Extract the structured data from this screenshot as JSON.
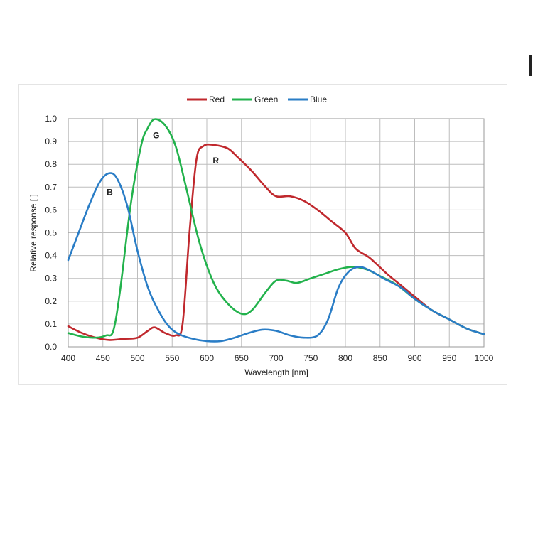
{
  "chart_data": {
    "type": "line",
    "title": "",
    "xlabel": "Wavelength [nm]",
    "ylabel": "Relative response [ ]",
    "xlim": [
      400,
      1000
    ],
    "ylim": [
      0,
      1.0
    ],
    "x_ticks": [
      "400",
      "450",
      "500",
      "550",
      "600",
      "650",
      "700",
      "750",
      "800",
      "850",
      "900",
      "950",
      "1000"
    ],
    "y_ticks": [
      "0.0",
      "0.1",
      "0.2",
      "0.3",
      "0.4",
      "0.5",
      "0.6",
      "0.7",
      "0.8",
      "0.9",
      "1.0"
    ],
    "grid": true,
    "legend_position": "top-center",
    "series": [
      {
        "name": "Red",
        "color": "#c0282d",
        "label": "R",
        "label_at": [
          613,
          0.82
        ],
        "points": [
          [
            400,
            0.09
          ],
          [
            420,
            0.06
          ],
          [
            440,
            0.04
          ],
          [
            460,
            0.03
          ],
          [
            480,
            0.035
          ],
          [
            500,
            0.04
          ],
          [
            515,
            0.07
          ],
          [
            525,
            0.085
          ],
          [
            540,
            0.06
          ],
          [
            555,
            0.05
          ],
          [
            565,
            0.1
          ],
          [
            575,
            0.5
          ],
          [
            585,
            0.82
          ],
          [
            595,
            0.88
          ],
          [
            610,
            0.885
          ],
          [
            630,
            0.87
          ],
          [
            645,
            0.83
          ],
          [
            665,
            0.77
          ],
          [
            685,
            0.7
          ],
          [
            700,
            0.66
          ],
          [
            720,
            0.66
          ],
          [
            740,
            0.64
          ],
          [
            760,
            0.6
          ],
          [
            780,
            0.55
          ],
          [
            800,
            0.5
          ],
          [
            815,
            0.43
          ],
          [
            835,
            0.39
          ],
          [
            860,
            0.32
          ],
          [
            880,
            0.27
          ],
          [
            900,
            0.22
          ],
          [
            925,
            0.16
          ],
          [
            950,
            0.12
          ],
          [
            975,
            0.08
          ],
          [
            1000,
            0.055
          ]
        ]
      },
      {
        "name": "Green",
        "color": "#22b24c",
        "label": "G",
        "label_at": [
          527,
          0.93
        ],
        "points": [
          [
            400,
            0.06
          ],
          [
            420,
            0.045
          ],
          [
            440,
            0.04
          ],
          [
            455,
            0.05
          ],
          [
            465,
            0.07
          ],
          [
            475,
            0.25
          ],
          [
            490,
            0.62
          ],
          [
            505,
            0.88
          ],
          [
            515,
            0.96
          ],
          [
            525,
            0.998
          ],
          [
            540,
            0.97
          ],
          [
            555,
            0.88
          ],
          [
            570,
            0.7
          ],
          [
            590,
            0.45
          ],
          [
            610,
            0.28
          ],
          [
            630,
            0.19
          ],
          [
            650,
            0.145
          ],
          [
            665,
            0.16
          ],
          [
            685,
            0.24
          ],
          [
            700,
            0.29
          ],
          [
            715,
            0.29
          ],
          [
            730,
            0.28
          ],
          [
            750,
            0.3
          ],
          [
            770,
            0.32
          ],
          [
            790,
            0.34
          ],
          [
            810,
            0.35
          ],
          [
            830,
            0.34
          ],
          [
            850,
            0.31
          ],
          [
            875,
            0.27
          ],
          [
            900,
            0.21
          ],
          [
            925,
            0.16
          ],
          [
            950,
            0.12
          ],
          [
            975,
            0.08
          ],
          [
            1000,
            0.055
          ]
        ]
      },
      {
        "name": "Blue",
        "color": "#2a7dc6",
        "label": "B",
        "label_at": [
          460,
          0.68
        ],
        "points": [
          [
            400,
            0.38
          ],
          [
            415,
            0.5
          ],
          [
            430,
            0.62
          ],
          [
            445,
            0.72
          ],
          [
            458,
            0.76
          ],
          [
            470,
            0.74
          ],
          [
            485,
            0.62
          ],
          [
            500,
            0.42
          ],
          [
            515,
            0.26
          ],
          [
            530,
            0.16
          ],
          [
            545,
            0.09
          ],
          [
            560,
            0.055
          ],
          [
            580,
            0.035
          ],
          [
            600,
            0.025
          ],
          [
            620,
            0.025
          ],
          [
            640,
            0.04
          ],
          [
            660,
            0.06
          ],
          [
            680,
            0.075
          ],
          [
            700,
            0.07
          ],
          [
            720,
            0.05
          ],
          [
            740,
            0.04
          ],
          [
            760,
            0.05
          ],
          [
            775,
            0.12
          ],
          [
            790,
            0.26
          ],
          [
            805,
            0.33
          ],
          [
            820,
            0.35
          ],
          [
            835,
            0.335
          ],
          [
            855,
            0.3
          ],
          [
            880,
            0.26
          ],
          [
            900,
            0.21
          ],
          [
            925,
            0.16
          ],
          [
            950,
            0.12
          ],
          [
            975,
            0.08
          ],
          [
            1000,
            0.055
          ]
        ]
      }
    ]
  }
}
